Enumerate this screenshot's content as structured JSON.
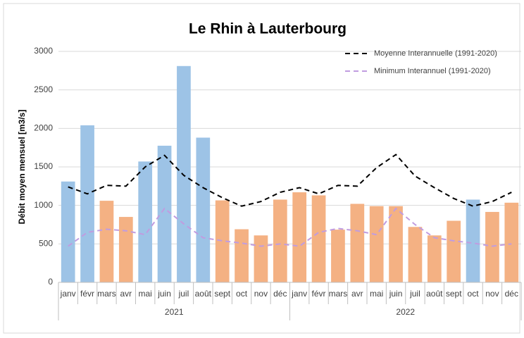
{
  "chart_data": {
    "type": "bar",
    "title": "Le Rhin à Lauterbourg",
    "y_label": "Débit moyen mensuel [m3/s]",
    "categories": [
      "janv",
      "févr",
      "mars",
      "avr",
      "mai",
      "juin",
      "juil",
      "août",
      "sept",
      "oct",
      "nov",
      "déc",
      "janv",
      "févr",
      "mars",
      "avr",
      "mai",
      "juin",
      "juil",
      "août",
      "sept",
      "oct",
      "nov",
      "déc"
    ],
    "groups": [
      {
        "label": "2021",
        "count": 12
      },
      {
        "label": "2022",
        "count": 12
      }
    ],
    "values": [
      1310,
      2040,
      1060,
      850,
      1570,
      1775,
      2810,
      1880,
      1065,
      690,
      610,
      1075,
      1170,
      1130,
      685,
      1020,
      990,
      990,
      720,
      610,
      800,
      1075,
      915,
      1035
    ],
    "colors": [
      "#9dc3e6",
      "#9dc3e6",
      "#f4b183",
      "#f4b183",
      "#9dc3e6",
      "#9dc3e6",
      "#9dc3e6",
      "#9dc3e6",
      "#f4b183",
      "#f4b183",
      "#f4b183",
      "#f4b183",
      "#f4b183",
      "#f4b183",
      "#f4b183",
      "#f4b183",
      "#f4b183",
      "#f4b183",
      "#f4b183",
      "#f4b183",
      "#f4b183",
      "#9dc3e6",
      "#f4b183",
      "#f4b183"
    ],
    "series": [
      {
        "name": "Moyenne Interannuelle (1991-2020)",
        "color": "#000000",
        "dashed": true,
        "values": [
          1240,
          1150,
          1260,
          1250,
          1500,
          1650,
          1390,
          1230,
          1100,
          990,
          1050,
          1170,
          1230,
          1150,
          1260,
          1250,
          1490,
          1660,
          1380,
          1230,
          1090,
          990,
          1050,
          1170
        ]
      },
      {
        "name": "Minimum Interannuel (1991-2020)",
        "color": "#c09ce0",
        "dashed": true,
        "values": [
          470,
          650,
          690,
          670,
          620,
          960,
          760,
          580,
          540,
          510,
          470,
          500,
          470,
          650,
          700,
          670,
          620,
          960,
          750,
          580,
          540,
          510,
          470,
          500
        ]
      }
    ],
    "ylim": [
      0,
      3000
    ],
    "yticks": [
      0,
      500,
      1000,
      1500,
      2000,
      2500,
      3000
    ],
    "grid": true,
    "legend": "top-right"
  }
}
